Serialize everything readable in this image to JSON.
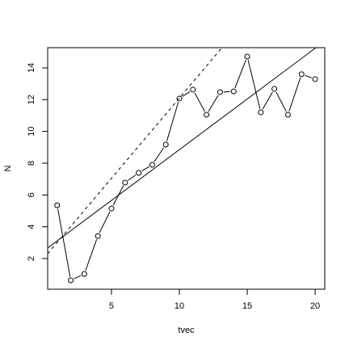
{
  "chart_data": {
    "type": "scatter",
    "xlabel": "tvec",
    "ylabel": "N",
    "x": [
      1,
      2,
      3,
      4,
      5,
      6,
      7,
      8,
      9,
      10,
      11,
      12,
      13,
      14,
      15,
      16,
      17,
      18,
      19,
      20
    ],
    "series": [
      {
        "color": "#000000",
        "style": "b",
        "values": [
          5.35,
          0.63,
          1.03,
          3.42,
          5.15,
          6.78,
          7.39,
          7.9,
          9.17,
          12.07,
          12.63,
          11.05,
          12.47,
          12.52,
          14.71,
          11.2,
          12.68,
          11.05,
          13.6,
          13.29
        ]
      }
    ],
    "lines": [
      {
        "intercept": 2.47,
        "slope": 0.638,
        "dash": false
      },
      {
        "intercept": 2.0,
        "slope": 1.01,
        "dash": true
      }
    ],
    "xlim": [
      0.3,
      20.71
    ],
    "ylim": [
      0.07,
      15.27
    ],
    "xticks": [
      5,
      10,
      15,
      20
    ],
    "yticks": [
      2,
      4,
      6,
      8,
      10,
      12,
      14
    ]
  }
}
